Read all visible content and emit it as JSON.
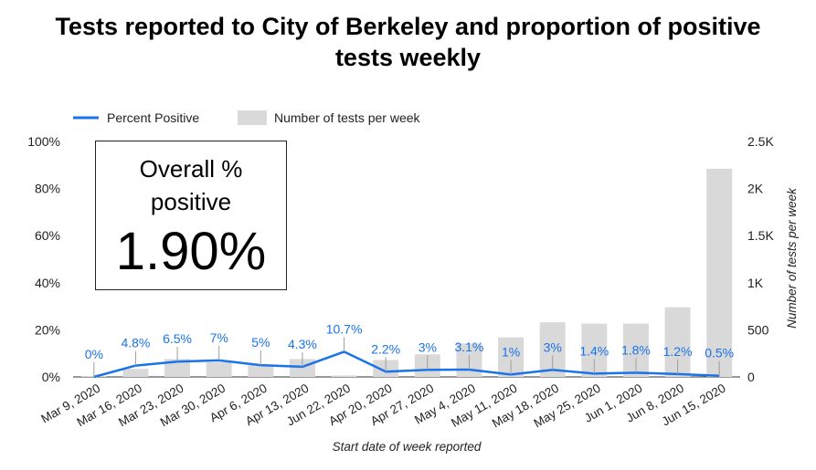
{
  "title": {
    "line1": "Tests reported to City of Berkeley and proportion of positive",
    "line2": "tests weekly"
  },
  "kpi": {
    "label": "Overall % positive",
    "value": "1.90%"
  },
  "colors": {
    "line": "#1a73e8",
    "bar": "#d9d9d9",
    "text": "#222222"
  },
  "chart_data": {
    "type": "bar",
    "title": "Tests reported to City of Berkeley and proportion of positive tests weekly",
    "xlabel": "Start date of week reported",
    "ylabel_left": "",
    "ylabel_right": "Number of tests per week",
    "ylim_left": [
      0,
      100
    ],
    "ylim_right": [
      0,
      2500
    ],
    "left_ticks": [
      "0%",
      "20%",
      "40%",
      "60%",
      "80%",
      "100%"
    ],
    "right_ticks": [
      "0",
      "500",
      "1K",
      "1.5K",
      "2K",
      "2.5K"
    ],
    "legend": [
      "Percent Positive",
      "Number of tests per week"
    ],
    "legend_position": "top-left",
    "categories": [
      "Mar 9, 2020",
      "Mar 16, 2020",
      "Mar 23, 2020",
      "Mar 30, 2020",
      "Apr 6, 2020",
      "Apr 13, 2020",
      "Jun 22, 2020",
      "Apr 20, 2020",
      "Apr 27, 2020",
      "May 4, 2020",
      "May 11, 2020",
      "May 18, 2020",
      "May 25, 2020",
      "Jun 1, 2020",
      "Jun 8, 2020",
      "Jun 15, 2020"
    ],
    "series": [
      {
        "name": "Number of tests per week",
        "type": "bar",
        "axis": "right",
        "values": [
          10,
          85,
          190,
          155,
          125,
          190,
          15,
          180,
          240,
          355,
          420,
          580,
          565,
          565,
          740,
          2210
        ]
      },
      {
        "name": "Percent Positive",
        "type": "line",
        "axis": "left",
        "values": [
          0,
          4.8,
          6.5,
          7,
          5,
          4.3,
          10.7,
          2.2,
          3,
          3.1,
          1,
          3,
          1.4,
          1.8,
          1.2,
          0.5
        ],
        "labels": [
          "0%",
          "4.8%",
          "6.5%",
          "7%",
          "5%",
          "4.3%",
          "10.7%",
          "2.2%",
          "3%",
          "3.1%",
          "1%",
          "3%",
          "1.4%",
          "1.8%",
          "1.2%",
          "0.5%"
        ]
      }
    ]
  }
}
